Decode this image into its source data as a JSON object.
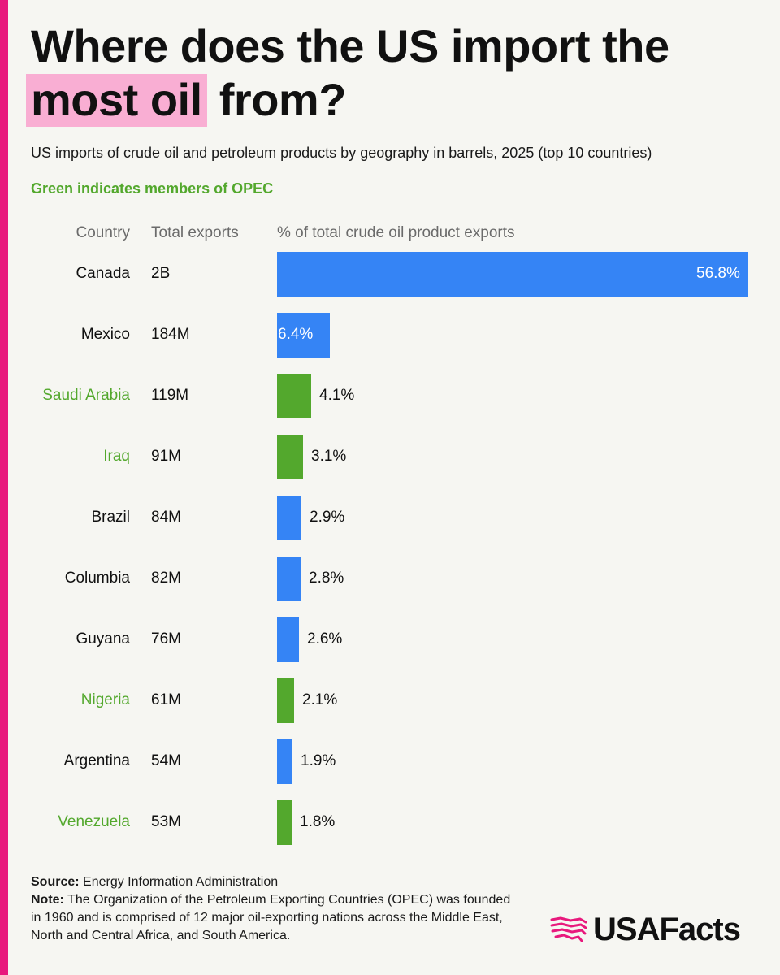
{
  "colors": {
    "accent": "#e8197d",
    "highlight": "#f9aed3",
    "blue": "#3584f5",
    "green": "#53a82d",
    "text": "#111111",
    "muted": "#6b6b6b"
  },
  "title": {
    "line1": "Where does the US import the",
    "highlight": "most oil",
    "rest": " from?"
  },
  "subtitle": "US imports of crude oil and petroleum products by geography in barrels, 2025 (top 10 countries)",
  "opec_note": "Green indicates members of OPEC",
  "columns": {
    "country": "Country",
    "total": "Total exports",
    "pct": "% of total crude oil product exports"
  },
  "chart_data": {
    "type": "bar",
    "orientation": "horizontal",
    "categories": [
      "Canada",
      "Mexico",
      "Saudi Arabia",
      "Iraq",
      "Brazil",
      "Columbia",
      "Guyana",
      "Nigeria",
      "Argentina",
      "Venezuela"
    ],
    "totals": [
      "2B",
      "184M",
      "119M",
      "91M",
      "84M",
      "82M",
      "76M",
      "61M",
      "54M",
      "53M"
    ],
    "values": [
      56.8,
      6.4,
      4.1,
      3.1,
      2.9,
      2.8,
      2.6,
      2.1,
      1.9,
      1.8
    ],
    "value_labels": [
      "56.8%",
      "6.4%",
      "4.1%",
      "3.1%",
      "2.9%",
      "2.8%",
      "2.6%",
      "2.1%",
      "1.9%",
      "1.8%"
    ],
    "opec": [
      false,
      false,
      true,
      true,
      false,
      false,
      false,
      true,
      false,
      true
    ],
    "xlim": [
      0,
      56.8
    ],
    "grid": false,
    "legend": "none"
  },
  "footer": {
    "source_label": "Source:",
    "source_text": " Energy Information Administration",
    "note_label": "Note:",
    "note_text": " The Organization of the Petroleum Exporting Countries (OPEC) was founded in 1960 and is comprised of 12 major oil-exporting nations across the Middle East, North and Central Africa, and South America."
  },
  "logo": {
    "wordmark": "USAFacts",
    "icon": "us-map-stripes-icon"
  }
}
